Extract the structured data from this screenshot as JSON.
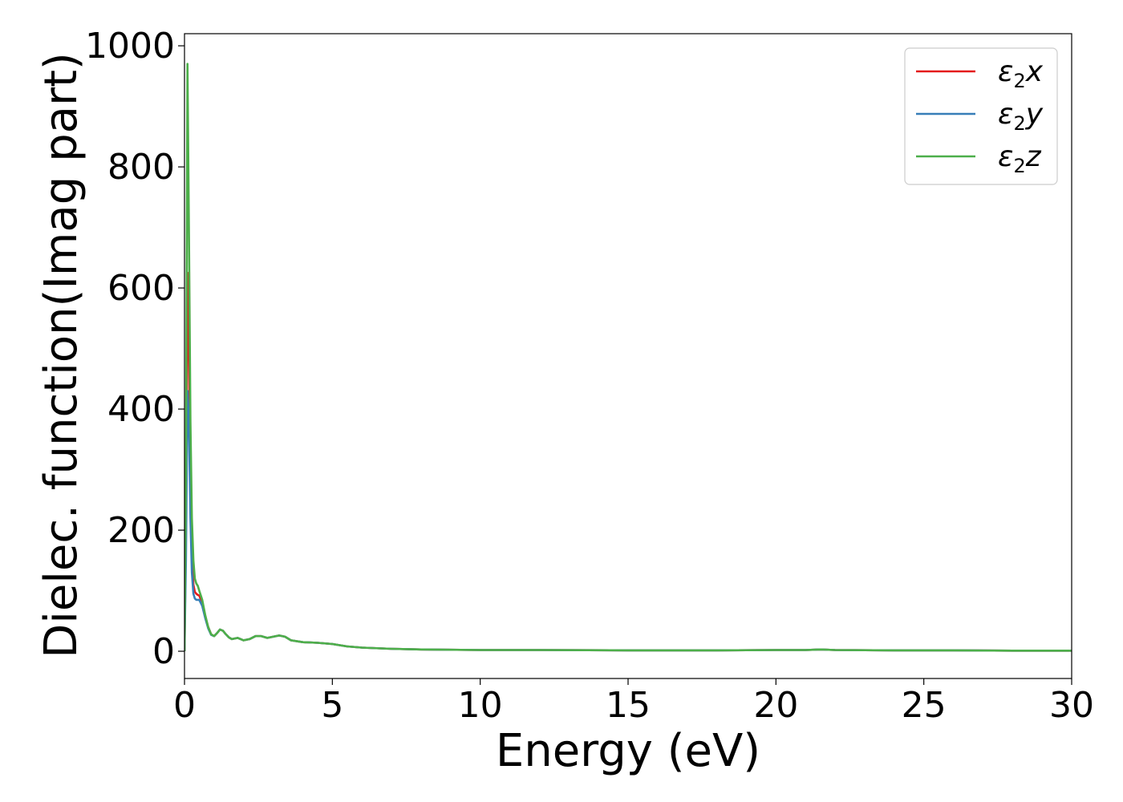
{
  "chart_data": {
    "type": "line",
    "title": "",
    "xlabel": "Energy (eV)",
    "ylabel": "Dielec. function(Imag part)",
    "xlim": [
      0,
      30
    ],
    "ylim": [
      -45,
      1020
    ],
    "xticks": [
      0,
      5,
      10,
      15,
      20,
      25,
      30
    ],
    "yticks": [
      0,
      200,
      400,
      600,
      800,
      1000
    ],
    "grid": false,
    "legend_position": "top-right",
    "series": [
      {
        "name": "ε₂x",
        "legend_base": "ε",
        "legend_sub": "2",
        "legend_axis": "x",
        "color": "#e41a1c",
        "x": [
          0.0,
          0.05,
          0.1,
          0.15,
          0.2,
          0.25,
          0.3,
          0.35,
          0.4,
          0.45,
          0.5,
          0.6,
          0.7,
          0.8,
          0.9,
          1.0,
          1.1,
          1.2,
          1.3,
          1.4,
          1.5,
          1.6,
          1.8,
          2.0,
          2.2,
          2.4,
          2.6,
          2.8,
          3.0,
          3.2,
          3.4,
          3.6,
          4.0,
          4.5,
          5.0,
          5.5,
          6.0,
          7.0,
          8.0,
          10.0,
          12.0,
          15.0,
          18.0,
          20.0,
          21.0,
          21.5,
          22.0,
          24.0,
          26.0,
          28.0,
          30.0
        ],
        "y": [
          0,
          200,
          625,
          500,
          280,
          160,
          110,
          98,
          95,
          93,
          92,
          80,
          58,
          40,
          28,
          25,
          30,
          36,
          34,
          28,
          23,
          20,
          22,
          18,
          20,
          25,
          25,
          22,
          24,
          26,
          24,
          18,
          15,
          14,
          12,
          8,
          6,
          4,
          3,
          2,
          2,
          1.5,
          1.5,
          2,
          2,
          3,
          2,
          1.5,
          1.5,
          1,
          1
        ]
      },
      {
        "name": "ε₂y",
        "legend_base": "ε",
        "legend_sub": "2",
        "legend_axis": "y",
        "color": "#377eb8",
        "x": [
          0.0,
          0.05,
          0.1,
          0.15,
          0.2,
          0.25,
          0.3,
          0.35,
          0.4,
          0.45,
          0.5,
          0.6,
          0.7,
          0.8,
          0.9,
          1.0,
          1.1,
          1.2,
          1.3,
          1.4,
          1.5,
          1.6,
          1.8,
          2.0,
          2.2,
          2.4,
          2.6,
          2.8,
          3.0,
          3.2,
          3.4,
          3.6,
          4.0,
          4.5,
          5.0,
          5.5,
          6.0,
          7.0,
          8.0,
          10.0,
          12.0,
          15.0,
          18.0,
          20.0,
          21.0,
          21.5,
          22.0,
          24.0,
          26.0,
          28.0,
          30.0
        ],
        "y": [
          0,
          150,
          430,
          380,
          220,
          130,
          95,
          87,
          85,
          85,
          85,
          75,
          55,
          38,
          27,
          25,
          30,
          36,
          34,
          28,
          23,
          20,
          22,
          18,
          20,
          25,
          25,
          22,
          24,
          26,
          24,
          18,
          15,
          14,
          12,
          8,
          6,
          4,
          3,
          2,
          2,
          1.5,
          1.5,
          2,
          2,
          3,
          2,
          1.5,
          1.5,
          1,
          1
        ]
      },
      {
        "name": "ε₂z",
        "legend_base": "ε",
        "legend_sub": "2",
        "legend_axis": "z",
        "color": "#4daf4a",
        "x": [
          0.0,
          0.05,
          0.1,
          0.15,
          0.2,
          0.25,
          0.3,
          0.35,
          0.4,
          0.45,
          0.5,
          0.6,
          0.7,
          0.8,
          0.9,
          1.0,
          1.1,
          1.2,
          1.3,
          1.4,
          1.5,
          1.6,
          1.8,
          2.0,
          2.2,
          2.4,
          2.6,
          2.8,
          3.0,
          3.2,
          3.4,
          3.6,
          4.0,
          4.5,
          5.0,
          5.5,
          6.0,
          7.0,
          8.0,
          10.0,
          12.0,
          15.0,
          18.0,
          20.0,
          21.0,
          21.5,
          22.0,
          24.0,
          26.0,
          28.0,
          30.0
        ],
        "y": [
          0,
          300,
          970,
          700,
          380,
          220,
          150,
          120,
          112,
          108,
          100,
          85,
          60,
          40,
          28,
          25,
          30,
          36,
          34,
          28,
          23,
          20,
          22,
          18,
          20,
          25,
          25,
          22,
          24,
          26,
          24,
          18,
          15,
          14,
          12,
          8,
          6,
          4,
          3,
          2,
          2,
          1.5,
          1.5,
          2,
          2,
          3,
          2,
          1.5,
          1.5,
          1,
          1
        ]
      }
    ]
  }
}
